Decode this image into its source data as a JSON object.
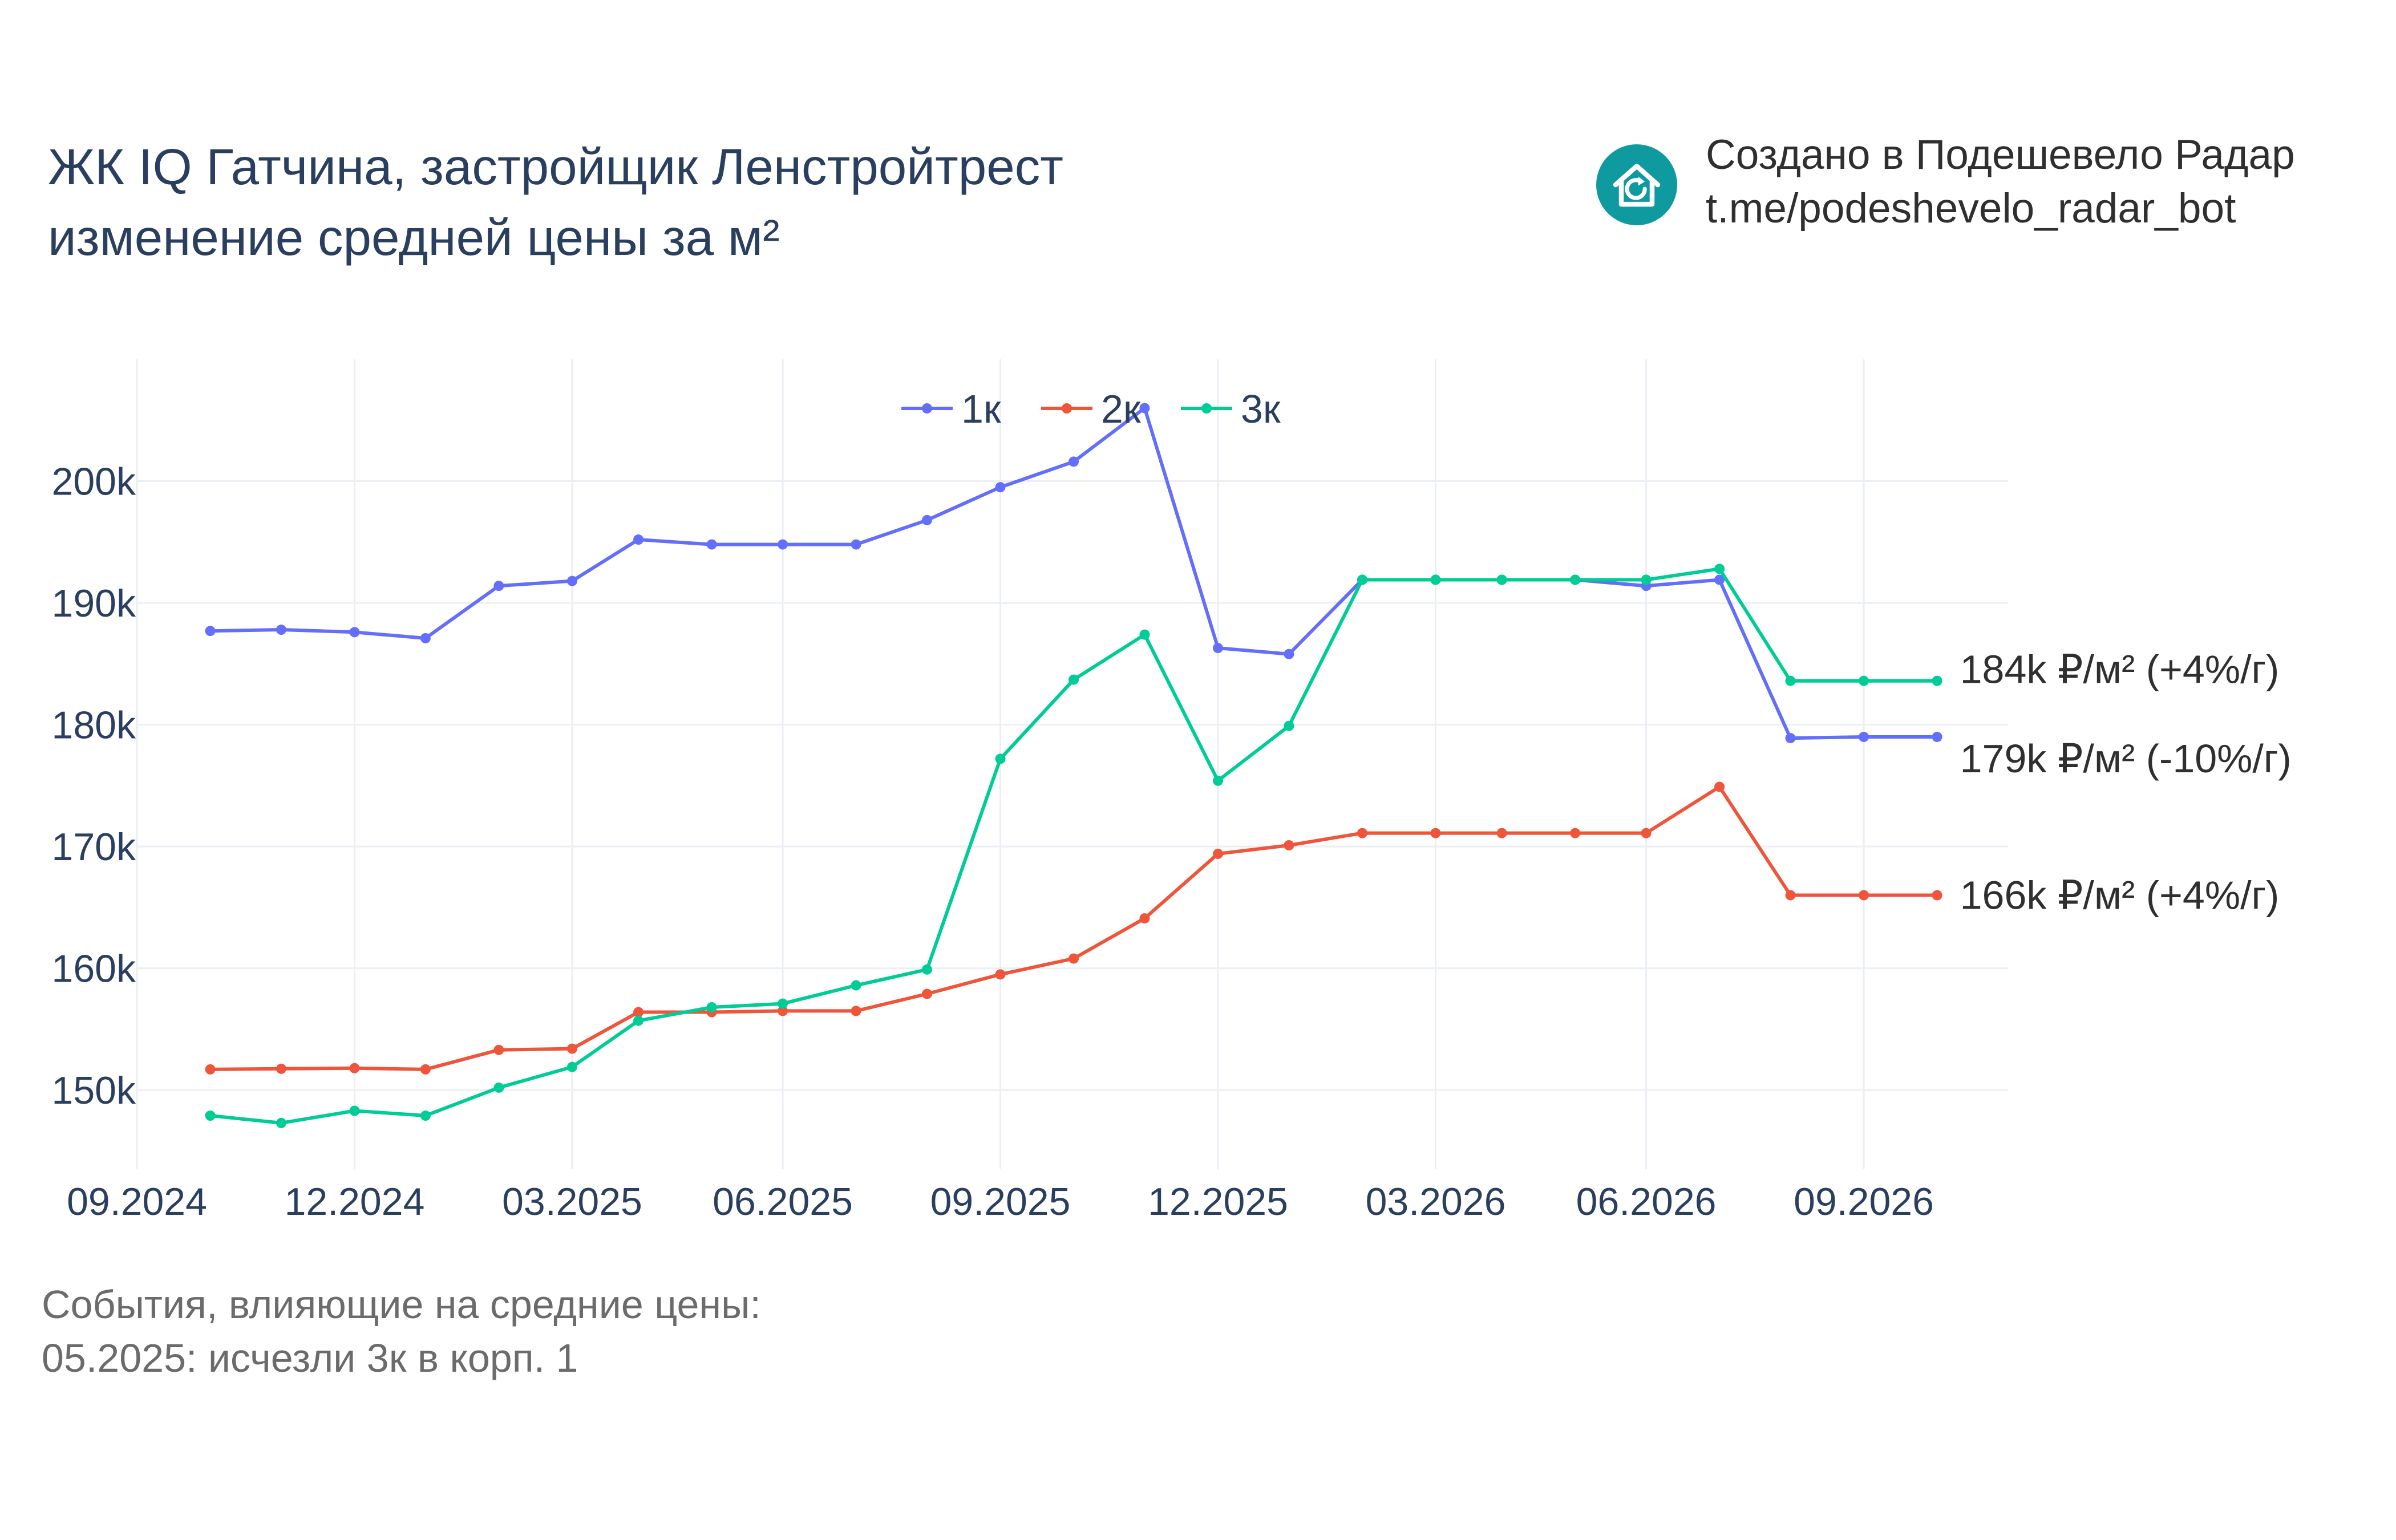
{
  "header": {
    "title_line1": "ЖК IQ Гатчина, застройщик Ленстройтрест",
    "title_line2": "изменение средней цены за м²"
  },
  "credit": {
    "line1": "Создано в Подешевело Радар",
    "line2": "t.me/podeshevelo_radar_bot",
    "logo_icon": "house-refresh-icon",
    "logo_color": "#0f9aa0"
  },
  "events": {
    "heading": "События, влияющие на средние цены:",
    "items": [
      "05.2025: исчезли 3к в корп. 1"
    ]
  },
  "chart_data": {
    "type": "line",
    "x": [
      "2024-09-01",
      "2024-10-01",
      "2024-11-01",
      "2024-12-01",
      "2025-01-01",
      "2025-02-01",
      "2025-03-01",
      "2025-04-01",
      "2025-05-01",
      "2025-06-01",
      "2025-07-01",
      "2025-08-01",
      "2025-09-01",
      "2025-10-01",
      "2025-11-01",
      "2025-12-01",
      "2026-01-01",
      "2026-02-01",
      "2026-03-01",
      "2026-04-01",
      "2026-05-01",
      "2026-06-01",
      "2026-07-01",
      "2026-08-01",
      "2026-09-01"
    ],
    "x_ticks": [
      "09.2024",
      "12.2024",
      "03.2025",
      "06.2025",
      "09.2025",
      "12.2025",
      "03.2026",
      "06.2026",
      "09.2026"
    ],
    "x_tick_dates": [
      "2024-08-01",
      "2024-11-01",
      "2025-02-01",
      "2025-05-01",
      "2025-08-01",
      "2025-11-01",
      "2026-02-01",
      "2026-05-01",
      "2026-08-01"
    ],
    "x_range": [
      "2024-08-01",
      "2026-10-01"
    ],
    "y_ticks": [
      150000,
      160000,
      170000,
      180000,
      190000,
      200000
    ],
    "y_tick_labels": [
      "150k",
      "160k",
      "170k",
      "180k",
      "190k",
      "200k"
    ],
    "ylim": [
      143500,
      210000
    ],
    "grid": true,
    "legend": "top-center",
    "series": [
      {
        "name": "1к",
        "color": "#636efa",
        "end_label": "179k ₽/м² (-10%/г)",
        "values": [
          187700,
          187800,
          187600,
          187100,
          191400,
          191800,
          195200,
          194800,
          194800,
          194800,
          196800,
          199500,
          201600,
          206000,
          186300,
          185800,
          191900,
          191900,
          191900,
          191900,
          191400,
          191900,
          178900,
          179000,
          179000
        ]
      },
      {
        "name": "2к",
        "color": "#ef553b",
        "end_label": "166k ₽/м² (+4%/г)",
        "values": [
          151700,
          151750,
          151800,
          151700,
          153300,
          153400,
          156400,
          156400,
          156500,
          156500,
          157900,
          159500,
          160800,
          164100,
          169400,
          170100,
          171100,
          171100,
          171100,
          171100,
          171100,
          174900,
          166000,
          166000,
          166000
        ]
      },
      {
        "name": "3к",
        "color": "#00cc96",
        "end_label": "184k ₽/м² (+4%/г)",
        "values": [
          147900,
          147300,
          148300,
          147900,
          150200,
          151900,
          155700,
          156800,
          157100,
          158600,
          159900,
          177200,
          183700,
          187400,
          175400,
          179900,
          191900,
          191900,
          191900,
          191900,
          191900,
          192800,
          183600,
          183600,
          183600
        ]
      }
    ]
  }
}
